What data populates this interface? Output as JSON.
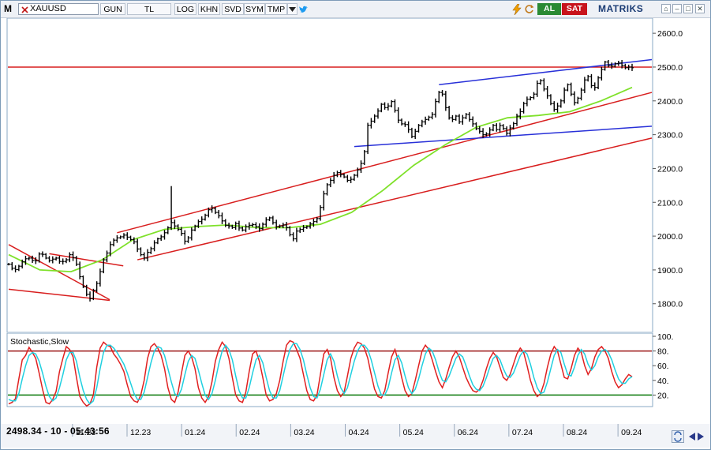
{
  "toolbar": {
    "logo": "M",
    "symbol": "XAUUSD",
    "buttons": [
      "GUN",
      "TL",
      "LOG",
      "KHN",
      "SVD",
      "SYM",
      "TMP"
    ],
    "buy_label": "AL",
    "sell_label": "SAT",
    "brand": "MATRIKS",
    "colors": {
      "buy": "#2a8a34",
      "sell": "#c8141c"
    }
  },
  "status": {
    "readout": "2498.34 - 10 - 05:43:56"
  },
  "chart_data": [
    {
      "type": "candlestick",
      "symbol": "XAUUSD",
      "y_axis": {
        "ticks": [
          1800,
          1900,
          2000,
          2100,
          2200,
          2300,
          2400,
          2500,
          2600
        ],
        "range": [
          1720,
          2640
        ]
      },
      "x_axis": {
        "ticks": [
          "11.23",
          "12.23",
          "01.24",
          "02.24",
          "03.24",
          "04.24",
          "05.24",
          "06.24",
          "07.24",
          "08.24",
          "09.24"
        ]
      },
      "close_series": [
        1917,
        1905,
        1901,
        1911,
        1924,
        1933,
        1935,
        1928,
        1927,
        1947,
        1946,
        1935,
        1928,
        1932,
        1935,
        1925,
        1925,
        1930,
        1945,
        1936,
        1917,
        1880,
        1850,
        1828,
        1815,
        1840,
        1860,
        1895,
        1930,
        1950,
        1975,
        1988,
        1995,
        1998,
        2003,
        1997,
        1990,
        1983,
        1962,
        1945,
        1935,
        1952,
        1963,
        1980,
        1992,
        1998,
        2010,
        2025,
        2040,
        2030,
        2020,
        2008,
        1985,
        1995,
        2018,
        2030,
        2043,
        2050,
        2062,
        2078,
        2082,
        2070,
        2060,
        2045,
        2032,
        2030,
        2025,
        2037,
        2024,
        2018,
        2028,
        2032,
        2034,
        2028,
        2022,
        2035,
        2048,
        2054,
        2040,
        2028,
        2030,
        2033,
        2025,
        2004,
        1992,
        2015,
        2020,
        2025,
        2028,
        2036,
        2043,
        2052,
        2085,
        2125,
        2152,
        2165,
        2180,
        2188,
        2182,
        2175,
        2165,
        2168,
        2180,
        2196,
        2215,
        2250,
        2328,
        2340,
        2355,
        2370,
        2390,
        2380,
        2385,
        2398,
        2372,
        2343,
        2332,
        2330,
        2315,
        2295,
        2310,
        2328,
        2338,
        2345,
        2352,
        2360,
        2398,
        2425,
        2420,
        2380,
        2350,
        2345,
        2355,
        2338,
        2350,
        2360,
        2345,
        2332,
        2318,
        2310,
        2300,
        2302,
        2314,
        2328,
        2315,
        2327,
        2318,
        2304,
        2320,
        2333,
        2355,
        2368,
        2392,
        2405,
        2410,
        2420,
        2452,
        2460,
        2435,
        2415,
        2392,
        2375,
        2385,
        2400,
        2432,
        2448,
        2420,
        2395,
        2408,
        2432,
        2462,
        2472,
        2445,
        2440,
        2468,
        2493,
        2515,
        2505,
        2503,
        2510,
        2512,
        2505,
        2498,
        2500,
        2498
      ],
      "moving_average_values": [
        1945,
        1900,
        1895,
        1930,
        1990,
        2020,
        2028,
        2033,
        2025,
        2025,
        2035,
        2070,
        2135,
        2210,
        2270,
        2322,
        2350,
        2357,
        2368,
        2400,
        2440
      ],
      "horizontal_lines": [
        {
          "value": 2500,
          "color": "#d81e1e"
        }
      ],
      "channel_lines": [
        {
          "color": "#d81e1e",
          "from": [
            0,
            1975
          ],
          "to": [
            24,
            1812
          ]
        },
        {
          "color": "#d81e1e",
          "from": [
            0,
            1843
          ],
          "to": [
            24,
            1810
          ]
        },
        {
          "color": "#d81e1e",
          "from": [
            32,
            2010
          ],
          "to": [
            184,
            2425
          ]
        },
        {
          "color": "#d81e1e",
          "from": [
            38,
            1930
          ],
          "to": [
            184,
            2290
          ]
        },
        {
          "color": "#d81e1e",
          "from": [
            12,
            1948
          ],
          "to": [
            28,
            1912
          ]
        },
        {
          "color": "#2830d8",
          "from": [
            102,
            2265
          ],
          "to": [
            184,
            2325
          ]
        },
        {
          "color": "#2830d8",
          "from": [
            127,
            2448
          ],
          "to": [
            184,
            2522
          ]
        }
      ],
      "colors": {
        "candles": "#000000",
        "moving_average": "#7fe12a"
      }
    },
    {
      "type": "line",
      "title": "Stochastic,Slow",
      "y_axis": {
        "ticks": [
          20,
          40,
          60,
          80,
          100
        ],
        "range": [
          0,
          100
        ]
      },
      "levels": [
        {
          "value": 80,
          "color": "#9b1515"
        },
        {
          "value": 20,
          "color": "#0b7a0b"
        }
      ],
      "series": [
        {
          "color": "#e02020",
          "values": [
            8,
            10,
            15,
            42,
            68,
            74,
            85,
            78,
            70,
            50,
            28,
            10,
            8,
            14,
            25,
            52,
            70,
            86,
            82,
            72,
            44,
            18,
            10,
            5,
            8,
            20,
            58,
            84,
            92,
            88,
            86,
            76,
            70,
            62,
            52,
            34,
            18,
            12,
            10,
            20,
            40,
            70,
            86,
            90,
            84,
            74,
            56,
            30,
            14,
            10,
            24,
            50,
            74,
            80,
            72,
            56,
            30,
            16,
            10,
            18,
            38,
            66,
            82,
            92,
            86,
            70,
            44,
            20,
            12,
            10,
            24,
            52,
            76,
            80,
            66,
            44,
            20,
            12,
            14,
            22,
            40,
            66,
            88,
            94,
            92,
            82,
            70,
            48,
            26,
            14,
            12,
            20,
            48,
            76,
            82,
            70,
            44,
            26,
            18,
            24,
            46,
            70,
            84,
            92,
            90,
            84,
            70,
            48,
            28,
            18,
            16,
            26,
            50,
            72,
            82,
            66,
            44,
            26,
            18,
            22,
            40,
            60,
            80,
            88,
            82,
            68,
            52,
            38,
            30,
            42,
            58,
            72,
            80,
            72,
            58,
            44,
            34,
            26,
            24,
            28,
            40,
            56,
            70,
            78,
            72,
            58,
            44,
            40,
            48,
            62,
            76,
            84,
            78,
            60,
            40,
            26,
            18,
            22,
            36,
            58,
            76,
            86,
            80,
            62,
            44,
            42,
            56,
            74,
            84,
            78,
            60,
            48,
            56,
            72,
            82,
            86,
            80,
            70,
            52,
            38,
            30,
            34,
            42,
            48,
            45
          ]
        },
        {
          "color": "#20d0e0",
          "values": [
            14,
            12,
            12,
            22,
            42,
            60,
            74,
            78,
            76,
            66,
            50,
            32,
            18,
            12,
            16,
            30,
            48,
            68,
            78,
            78,
            66,
            44,
            26,
            14,
            8,
            12,
            30,
            56,
            78,
            88,
            88,
            84,
            78,
            70,
            62,
            50,
            36,
            22,
            14,
            14,
            24,
            44,
            64,
            80,
            86,
            84,
            74,
            56,
            38,
            22,
            18,
            28,
            48,
            66,
            74,
            70,
            54,
            36,
            20,
            14,
            22,
            40,
            62,
            80,
            88,
            82,
            68,
            46,
            26,
            16,
            16,
            30,
            50,
            68,
            74,
            64,
            44,
            26,
            16,
            16,
            26,
            46,
            66,
            82,
            90,
            90,
            82,
            68,
            48,
            30,
            18,
            16,
            28,
            48,
            68,
            76,
            66,
            46,
            30,
            22,
            30,
            48,
            66,
            80,
            88,
            88,
            82,
            68,
            50,
            32,
            20,
            20,
            30,
            50,
            68,
            74,
            64,
            46,
            30,
            22,
            28,
            42,
            60,
            76,
            84,
            80,
            68,
            52,
            40,
            38,
            46,
            58,
            70,
            76,
            72,
            60,
            46,
            34,
            28,
            26,
            32,
            44,
            58,
            70,
            74,
            68,
            56,
            46,
            44,
            50,
            62,
            74,
            80,
            76,
            62,
            44,
            30,
            22,
            24,
            38,
            56,
            74,
            82,
            78,
            62,
            48,
            46,
            58,
            74,
            82,
            76,
            62,
            54,
            60,
            72,
            80,
            82,
            78,
            68,
            54,
            42,
            36,
            36,
            42,
            45
          ]
        }
      ]
    }
  ]
}
